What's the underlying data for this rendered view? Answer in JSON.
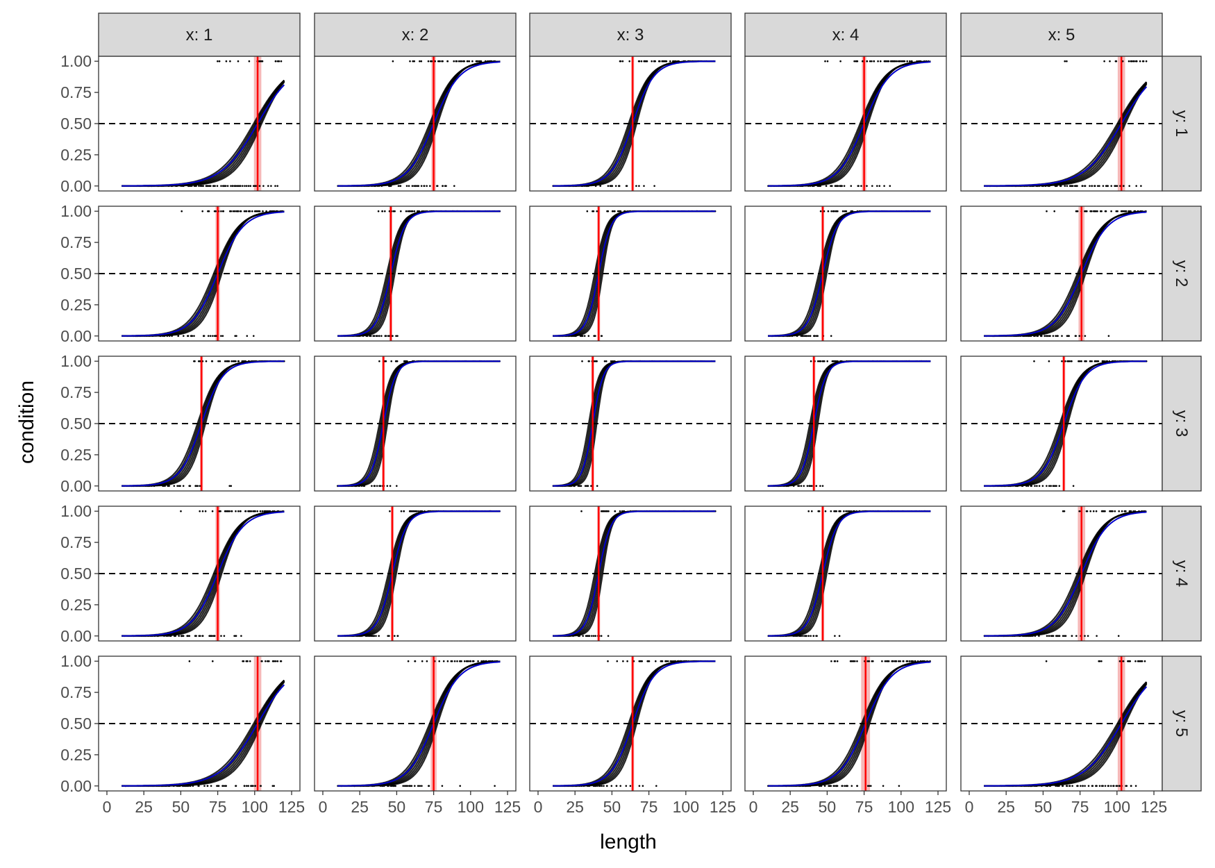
{
  "chart_data": {
    "type": "facet-line",
    "xlabel": "length",
    "ylabel": "condition",
    "xlim": [
      0,
      125
    ],
    "ylim": [
      0,
      1
    ],
    "x_ticks": [
      0,
      25,
      50,
      75,
      100,
      125
    ],
    "x_tick_labels": [
      "0",
      "25",
      "50",
      "75",
      "100",
      "125"
    ],
    "y_ticks": [
      0,
      0.25,
      0.5,
      0.75,
      1
    ],
    "y_tick_labels": [
      "0.00",
      "0.25",
      "0.50",
      "0.75",
      "1.00"
    ],
    "col_strips": [
      "x: 1",
      "x: 2",
      "x: 3",
      "x: 4",
      "x: 5"
    ],
    "row_strips": [
      "y: 1",
      "y: 2",
      "y: 3",
      "y: 4",
      "y: 5"
    ],
    "reference_line_y": 0.5,
    "data_x_range": [
      10,
      120
    ],
    "colors": {
      "black_curve": "#000000",
      "fitted_curve": "#0000cc",
      "threshold_line": "#ff0000",
      "threshold_band": "#f4a6a6",
      "strip_fill": "#d9d9d9",
      "panel_border": "#333333"
    },
    "panels": [
      {
        "row": 1,
        "col": 1,
        "threshold": 102,
        "band": 2.5
      },
      {
        "row": 1,
        "col": 2,
        "threshold": 75,
        "band": 1.5
      },
      {
        "row": 1,
        "col": 3,
        "threshold": 64,
        "band": 1
      },
      {
        "row": 1,
        "col": 4,
        "threshold": 75,
        "band": 1.5
      },
      {
        "row": 1,
        "col": 5,
        "threshold": 103,
        "band": 2.5
      },
      {
        "row": 2,
        "col": 1,
        "threshold": 75,
        "band": 1.5
      },
      {
        "row": 2,
        "col": 2,
        "threshold": 46,
        "band": 1
      },
      {
        "row": 2,
        "col": 3,
        "threshold": 41,
        "band": 1
      },
      {
        "row": 2,
        "col": 4,
        "threshold": 47,
        "band": 1
      },
      {
        "row": 2,
        "col": 5,
        "threshold": 76,
        "band": 2
      },
      {
        "row": 3,
        "col": 1,
        "threshold": 64,
        "band": 1
      },
      {
        "row": 3,
        "col": 2,
        "threshold": 41,
        "band": 1
      },
      {
        "row": 3,
        "col": 3,
        "threshold": 37,
        "band": 1
      },
      {
        "row": 3,
        "col": 4,
        "threshold": 41,
        "band": 1
      },
      {
        "row": 3,
        "col": 5,
        "threshold": 64,
        "band": 1
      },
      {
        "row": 4,
        "col": 1,
        "threshold": 75,
        "band": 1.5
      },
      {
        "row": 4,
        "col": 2,
        "threshold": 47,
        "band": 1
      },
      {
        "row": 4,
        "col": 3,
        "threshold": 41,
        "band": 1
      },
      {
        "row": 4,
        "col": 4,
        "threshold": 47,
        "band": 1
      },
      {
        "row": 4,
        "col": 5,
        "threshold": 76,
        "band": 2.5
      },
      {
        "row": 5,
        "col": 1,
        "threshold": 102,
        "band": 2.5
      },
      {
        "row": 5,
        "col": 2,
        "threshold": 75,
        "band": 2
      },
      {
        "row": 5,
        "col": 3,
        "threshold": 64,
        "band": 1
      },
      {
        "row": 5,
        "col": 4,
        "threshold": 76,
        "band": 3
      },
      {
        "row": 5,
        "col": 5,
        "threshold": 103,
        "band": 2.5
      }
    ]
  }
}
